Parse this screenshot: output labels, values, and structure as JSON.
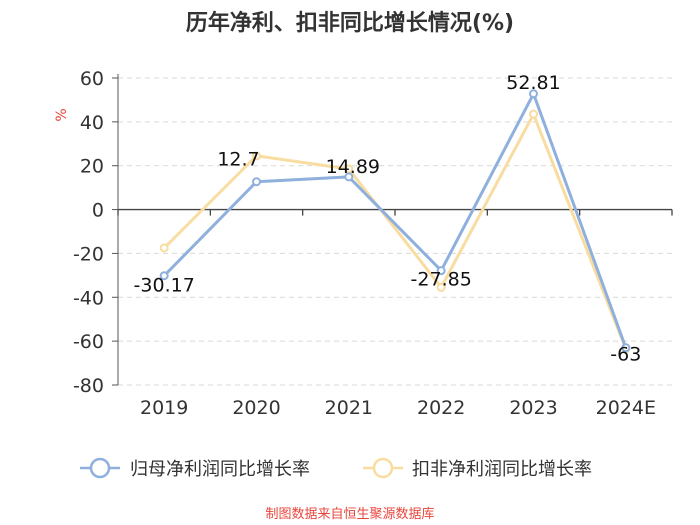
{
  "chart_data": {
    "type": "line",
    "title": "历年净利、扣非同比增长情况(%)",
    "ylabel": "%",
    "xlabel": "",
    "categories": [
      "2019",
      "2020",
      "2021",
      "2022",
      "2023",
      "2024E"
    ],
    "ylim": [
      -80,
      60
    ],
    "yticks": [
      60,
      40,
      20,
      0,
      -20,
      -40,
      -60,
      -80
    ],
    "grid": true,
    "legend_position": "bottom",
    "series": [
      {
        "name": "归母净利润同比增长率",
        "color": "#8fb0dc",
        "values": [
          -30.17,
          12.7,
          14.89,
          -27.85,
          52.81,
          -63
        ],
        "labels": [
          "-30.17",
          "12.7",
          "14.89",
          "-27.85",
          "52.81",
          "-63"
        ]
      },
      {
        "name": "扣非净利润同比增长率",
        "color": "#f9dca0",
        "values": [
          -17.5,
          24.5,
          18.5,
          -35.5,
          43.5,
          -63.5
        ]
      }
    ]
  },
  "source_note": "制图数据来自恒生聚源数据库"
}
